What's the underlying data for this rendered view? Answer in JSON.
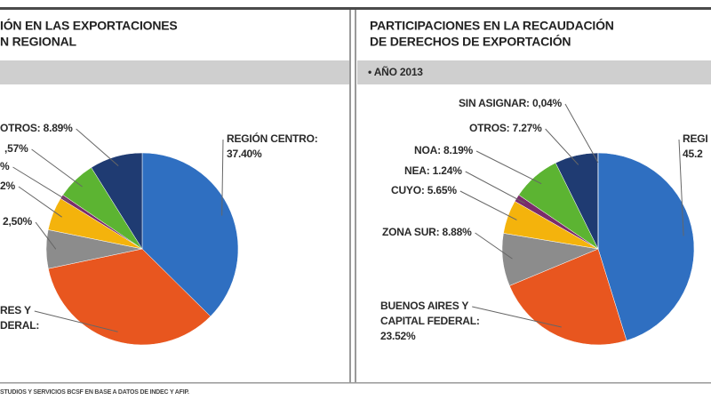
{
  "chart_data": [
    {
      "type": "pie",
      "title": [
        "IÓN EN LAS EXPORTACIONES",
        "N REGIONAL"
      ],
      "categories": [
        [
          "REGIÓN CENTRO:",
          "37.40%"
        ],
        [
          "RES Y",
          "DERAL:"
        ],
        [
          "2,50%"
        ],
        [
          "2%"
        ],
        [
          "%"
        ],
        [
          ",57%"
        ],
        [
          "OTROS: 8.89%"
        ]
      ],
      "values": [
        37.4,
        34.3,
        6.5,
        5.6,
        0.7,
        6.6,
        8.9
      ],
      "colors": [
        "#2f6fc1",
        "#e8561f",
        "#8c8c8c",
        "#f4b30c",
        "#7b2c6b",
        "#5cb432",
        "#1f3b72"
      ]
    },
    {
      "type": "pie",
      "title": [
        "PARTICIPACIONES EN LA RECAUDACIÓN",
        "DE DERECHOS DE EXPORTACIÓN"
      ],
      "subtitle": "• AÑO 2013",
      "categories": [
        [
          "REGI",
          "45.2"
        ],
        [
          "BUENOS AIRES Y",
          "CAPITAL FEDERAL:",
          "23.52%"
        ],
        [
          "ZONA SUR: 8.88%"
        ],
        [
          "CUYO: 5.65%"
        ],
        [
          "NEA: 1.24%"
        ],
        [
          "NOA: 8.19%"
        ],
        [
          "OTROS: 7.27%"
        ],
        [
          "SIN ASIGNAR: 0,04%"
        ]
      ],
      "values": [
        45.21,
        23.52,
        8.88,
        5.65,
        1.24,
        8.19,
        7.27,
        0.04
      ],
      "colors": [
        "#2f6fc1",
        "#e8561f",
        "#8c8c8c",
        "#f4b30c",
        "#7b2c6b",
        "#5cb432",
        "#1f3b72",
        "#1f3b72"
      ]
    }
  ],
  "source": "STUDIOS Y SERVICIOS BCSF EN BASE A DATOS DE INDEC Y AFIP."
}
